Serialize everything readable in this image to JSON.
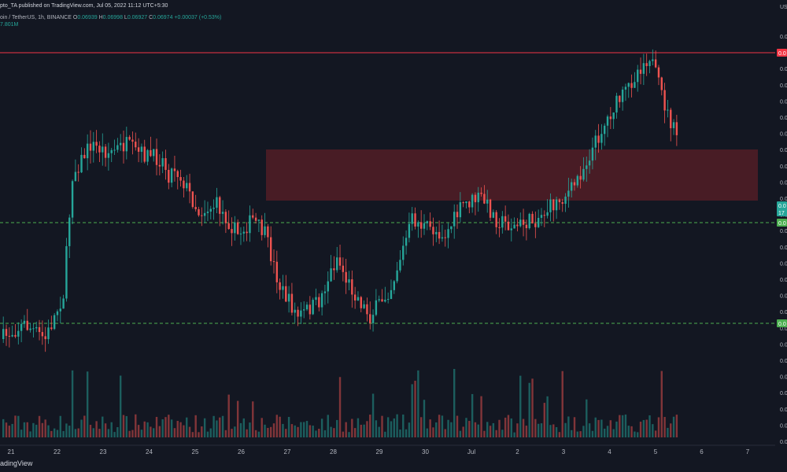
{
  "header": {
    "publish_line": "pto_TA published on TradingView.com, Jul 05, 2022 11:12 UTC+5:30",
    "symbol": "oin / TetherUS, 1h, BINANCE",
    "ohlc": {
      "o_label": "O",
      "o": "0.06939",
      "h_label": "H",
      "h": "0.06998",
      "l_label": "L",
      "l": "0.06927",
      "c_label": "C",
      "c": "0.06974",
      "change": "+0.00037 (+0.53%)"
    },
    "volume_text": "7.801M"
  },
  "footer": {
    "brand": "adingView"
  },
  "price_axis": {
    "currency": "US",
    "labels": [
      "0.0",
      "0.0",
      "0.0",
      "0.0",
      "0.0",
      "0.0",
      "0.0",
      "0.0",
      "0.0",
      "0.0",
      "0.0",
      "0.0",
      "0.0",
      "0.0",
      "0.0",
      "0.0",
      "0.0",
      "0.0",
      "0.0",
      "0.0",
      "0.0",
      "0.0",
      "0.0",
      "0.0",
      "0.0",
      "0.0"
    ]
  },
  "tags": [
    {
      "text": "0.0",
      "color": "#f23645"
    },
    {
      "text": "0.0",
      "color": "#26a69a"
    },
    {
      "text": "17",
      "color": "#26a69a"
    },
    {
      "text": "0.0",
      "color": "#4caf50"
    },
    {
      "text": "0.0",
      "color": "#4caf50"
    }
  ],
  "colors": {
    "background": "#131722",
    "up": "#26a69a",
    "down": "#ef5350",
    "resistance_line": "#f23645",
    "support_line": "#4caf50",
    "zone_fill": "#5b1f27",
    "grid": "#1e222d"
  },
  "chart_data": {
    "type": "candlestick",
    "x_ticks": [
      "21",
      "22",
      "23",
      "24",
      "25",
      "26",
      "27",
      "28",
      "29",
      "30",
      "Jul",
      "2",
      "3",
      "4",
      "5",
      "6",
      "7"
    ],
    "horizontal_lines": [
      {
        "style": "solid",
        "color": "#f23645"
      },
      {
        "style": "dashed",
        "color": "#4caf50"
      },
      {
        "style": "dashed",
        "color": "#4caf50"
      }
    ],
    "zones": [
      {
        "color": "#5b1f27"
      }
    ],
    "grid": false,
    "legend": "none",
    "price_path_keypoints": [
      [
        0,
        78
      ],
      [
        8,
        76
      ],
      [
        15,
        78
      ],
      [
        21,
        72
      ],
      [
        24,
        56
      ],
      [
        30,
        52
      ],
      [
        36,
        53
      ],
      [
        42,
        52
      ],
      [
        45,
        53
      ],
      [
        54,
        54
      ],
      [
        56,
        56
      ],
      [
        58,
        55
      ],
      [
        61,
        57
      ],
      [
        66,
        61
      ],
      [
        72,
        60
      ],
      [
        79,
        64
      ],
      [
        84,
        62
      ],
      [
        88,
        64
      ],
      [
        93,
        71
      ],
      [
        99,
        75
      ],
      [
        106,
        73
      ],
      [
        112,
        67
      ],
      [
        115,
        70
      ],
      [
        123,
        75
      ],
      [
        130,
        71
      ],
      [
        137,
        62
      ],
      [
        141,
        63
      ],
      [
        148,
        64
      ],
      [
        154,
        60
      ],
      [
        160,
        59
      ],
      [
        165,
        62
      ],
      [
        171,
        63
      ],
      [
        178,
        62
      ],
      [
        184,
        60
      ],
      [
        190,
        58
      ],
      [
        194,
        55
      ],
      [
        200,
        50
      ],
      [
        204,
        47
      ],
      [
        208,
        45
      ],
      [
        212,
        42
      ],
      [
        216,
        40
      ],
      [
        222,
        48
      ],
      [
        225,
        51
      ]
    ],
    "volume": {
      "note": "relative bar heights, 0-100",
      "baseline": 10
    }
  }
}
